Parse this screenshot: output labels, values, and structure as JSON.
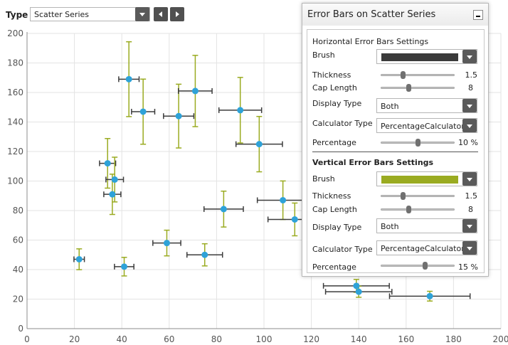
{
  "toolbar": {
    "type_label": "Type",
    "series_selected": "Scatter Series"
  },
  "chart_data": {
    "type": "scatter",
    "xlim": [
      0,
      200
    ],
    "ylim": [
      0,
      200
    ],
    "x_ticks": [
      "0",
      "20",
      "40",
      "60",
      "80",
      "100",
      "120",
      "140",
      "160",
      "180",
      "200"
    ],
    "y_ticks": [
      "0",
      "20",
      "40",
      "60",
      "80",
      "100",
      "120",
      "140",
      "160",
      "180",
      "200"
    ],
    "grid": true,
    "colors": {
      "point": "#2ea2d8",
      "horizontal_error": "#3c3c3c",
      "vertical_error": "#9aab21"
    },
    "horizontal_error_percent": 10,
    "vertical_error_percent": 15,
    "points": [
      {
        "x": 22,
        "y": 47
      },
      {
        "x": 34,
        "y": 112
      },
      {
        "x": 36,
        "y": 91
      },
      {
        "x": 37,
        "y": 101
      },
      {
        "x": 41,
        "y": 42
      },
      {
        "x": 43,
        "y": 169
      },
      {
        "x": 49,
        "y": 147
      },
      {
        "x": 59,
        "y": 58
      },
      {
        "x": 64,
        "y": 144
      },
      {
        "x": 71,
        "y": 161
      },
      {
        "x": 75,
        "y": 50
      },
      {
        "x": 83,
        "y": 81
      },
      {
        "x": 90,
        "y": 148
      },
      {
        "x": 98,
        "y": 125
      },
      {
        "x": 108,
        "y": 87
      },
      {
        "x": 113,
        "y": 74
      },
      {
        "x": 139,
        "y": 29
      },
      {
        "x": 140,
        "y": 25
      },
      {
        "x": 170,
        "y": 22
      }
    ]
  },
  "panel": {
    "title": "Error Bars on Scatter Series",
    "horizontal": {
      "heading": "Horizontal Error Bars Settings",
      "brush_label": "Brush",
      "brush_color": "#3a3a3a",
      "thickness_label": "Thickness",
      "thickness_value": "1.5",
      "thickness_fraction": 0.3,
      "cap_label": "Cap Length",
      "cap_value": "8",
      "cap_fraction": 0.38,
      "display_label": "Display Type",
      "display_value": "Both",
      "calc_label": "Calculator Type",
      "calc_value": "PercentageCalculator",
      "percent_label": "Percentage",
      "percent_value": "10 %",
      "percent_fraction": 0.5
    },
    "vertical": {
      "heading": "Vertical Error Bars Settings",
      "brush_label": "Brush",
      "brush_color": "#9aab21",
      "thickness_label": "Thickness",
      "thickness_value": "1.5",
      "thickness_fraction": 0.3,
      "cap_label": "Cap Length",
      "cap_value": "8",
      "cap_fraction": 0.38,
      "display_label": "Display Type",
      "display_value": "Both",
      "calc_label": "Calculator Type",
      "calc_value": "PercentageCalculator",
      "percent_label": "Percentage",
      "percent_value": "15 %",
      "percent_fraction": 0.6
    }
  }
}
